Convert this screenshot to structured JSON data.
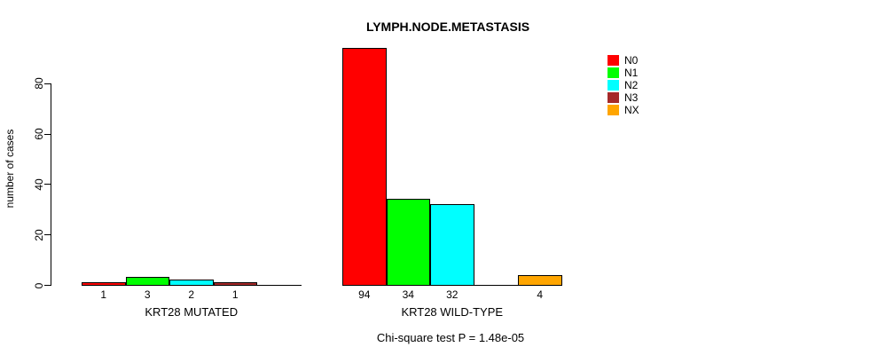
{
  "title": "LYMPH.NODE.METASTASIS",
  "footer": "Chi-square test P = 1.48e-05",
  "legend": {
    "entries": [
      {
        "label": "N0",
        "color": "#FF0000"
      },
      {
        "label": "N1",
        "color": "#00FF00"
      },
      {
        "label": "N2",
        "color": "#00FFFF"
      },
      {
        "label": "N3",
        "color": "#A52A2A"
      },
      {
        "label": "NX",
        "color": "#FFA500"
      }
    ]
  },
  "chart_data": {
    "type": "bar",
    "title": "LYMPH.NODE.METASTASIS",
    "ylabel": "number of cases",
    "xlabel": "",
    "categories": [
      "N0",
      "N1",
      "N2",
      "N3",
      "NX"
    ],
    "colors": [
      "#FF0000",
      "#00FF00",
      "#00FFFF",
      "#A52A2A",
      "#FFA500"
    ],
    "groups": [
      {
        "label": "KRT28 MUTATED",
        "values": [
          1,
          3,
          2,
          1,
          0
        ]
      },
      {
        "label": "KRT28 WILD-TYPE",
        "values": [
          94,
          34,
          32,
          0,
          4
        ]
      }
    ],
    "yticks": [
      0,
      20,
      40,
      60,
      80
    ],
    "ylim": [
      0,
      94
    ],
    "grid": false,
    "legend_position": "right",
    "annotation": "Chi-square test P = 1.48e-05"
  }
}
